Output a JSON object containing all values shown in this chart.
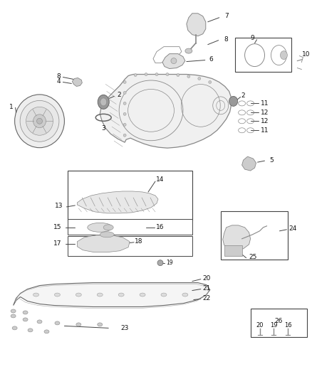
{
  "bg_color": "#ffffff",
  "fig_width": 4.38,
  "fig_height": 5.33,
  "dpi": 100,
  "font_size": 6.5,
  "line_color": "#444444",
  "text_color": "#111111"
}
